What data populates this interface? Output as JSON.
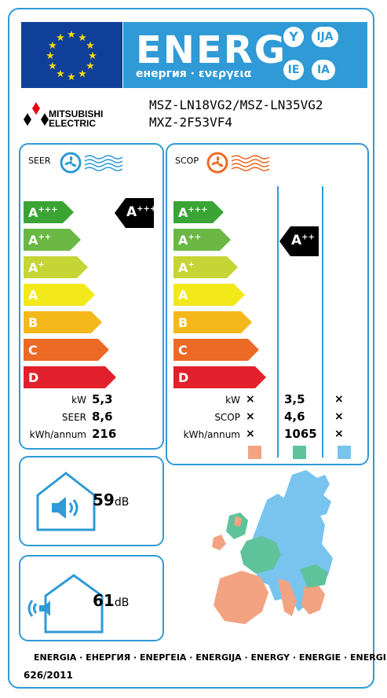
{
  "header": {
    "title": "ENERG",
    "subtitle": "енергия · ενεργεια",
    "lang_pills": [
      "Y",
      "IJA",
      "IE",
      "IA"
    ],
    "flag_icon": "eu-flag-icon"
  },
  "manufacturer": {
    "name_line1": "MITSUBISHI",
    "name_line2": "ELECTRIC",
    "logo_icon": "three-diamonds-logo-icon"
  },
  "models": {
    "line1": "MSZ-LN18VG2/MSZ-LN35VG2",
    "line2": "MXZ-2F53VF4"
  },
  "scale": {
    "classes": [
      {
        "label": "A",
        "sup": "+++",
        "color": "#3aa535"
      },
      {
        "label": "A",
        "sup": "++",
        "color": "#6ab843"
      },
      {
        "label": "A",
        "sup": "+",
        "color": "#c5d535"
      },
      {
        "label": "A",
        "sup": "",
        "color": "#f3e81a"
      },
      {
        "label": "B",
        "sup": "",
        "color": "#f5b81a"
      },
      {
        "label": "C",
        "sup": "",
        "color": "#ec6a25"
      },
      {
        "label": "D",
        "sup": "",
        "color": "#e2202b"
      }
    ]
  },
  "cooling": {
    "title": "SEER",
    "icon": "fan-cooling-icon",
    "rating": "A",
    "rating_sup": "+++",
    "rows": [
      {
        "label": "kW",
        "value": "5,3"
      },
      {
        "label": "SEER",
        "value": "8,6"
      },
      {
        "label": "kWh/annum",
        "value": "216"
      }
    ]
  },
  "heating": {
    "title": "SCOP",
    "icon": "fan-heating-icon",
    "rating": "A",
    "rating_sup": "++",
    "rows": [
      {
        "label": "kW",
        "warmer": "×",
        "average": "3,5",
        "colder": "×"
      },
      {
        "label": "SCOP",
        "warmer": "×",
        "average": "4,6",
        "colder": "×"
      },
      {
        "label": "kWh/annum",
        "warmer": "×",
        "average": "1065",
        "colder": "×"
      }
    ],
    "zone_colors": [
      "#f3a382",
      "#5ec39a",
      "#78c4ee"
    ]
  },
  "noise": {
    "indoor": {
      "value": "59",
      "unit": "dB",
      "icon": "indoor-noise-icon"
    },
    "outdoor": {
      "value": "61",
      "unit": "dB",
      "icon": "outdoor-noise-icon"
    }
  },
  "map_icon": "europe-climate-map-icon",
  "footer": {
    "languages": "ENERGIA · ЕНЕРГИЯ · ΕΝΕΡΓΕΙΑ · ENERGIJA · ENERGY · ENERGIE · ENERGI",
    "regulation": "626/2011"
  }
}
